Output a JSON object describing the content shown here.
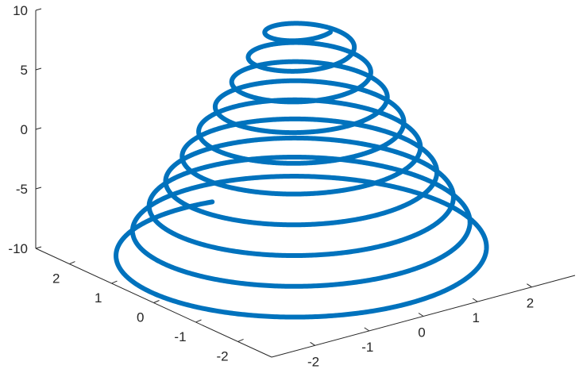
{
  "chart_data": {
    "type": "line3d",
    "title": "",
    "xlabel": "",
    "ylabel": "",
    "zlabel": "",
    "grid": false,
    "series": [
      {
        "color": "#0072BD",
        "x": "r(t)*cos(t)",
        "y": "r(t)*sin(t)",
        "z": "t",
        "t_range": [
          -10,
          10
        ],
        "r_at_t_min": 2.8,
        "r_at_t_max": 0.5
      }
    ],
    "xlim": [
      -2.8,
      2.8
    ],
    "ylim": [
      -2.8,
      2.8
    ],
    "zlim": [
      -10,
      10
    ],
    "x_ticks": [
      {
        "value": -2,
        "label": "-2"
      },
      {
        "value": -1,
        "label": "-1"
      },
      {
        "value": 0,
        "label": "0"
      },
      {
        "value": 1,
        "label": "1"
      },
      {
        "value": 2,
        "label": "2"
      }
    ],
    "y_ticks": [
      {
        "value": -2,
        "label": "-2"
      },
      {
        "value": -1,
        "label": "-1"
      },
      {
        "value": 0,
        "label": "0"
      },
      {
        "value": 1,
        "label": "1"
      },
      {
        "value": 2,
        "label": "2"
      }
    ],
    "z_ticks": [
      {
        "value": 10,
        "label": "10"
      },
      {
        "value": 5,
        "label": "5"
      },
      {
        "value": 0,
        "label": "0"
      },
      {
        "value": -5,
        "label": "-5"
      },
      {
        "value": -10,
        "label": "-10"
      }
    ]
  }
}
